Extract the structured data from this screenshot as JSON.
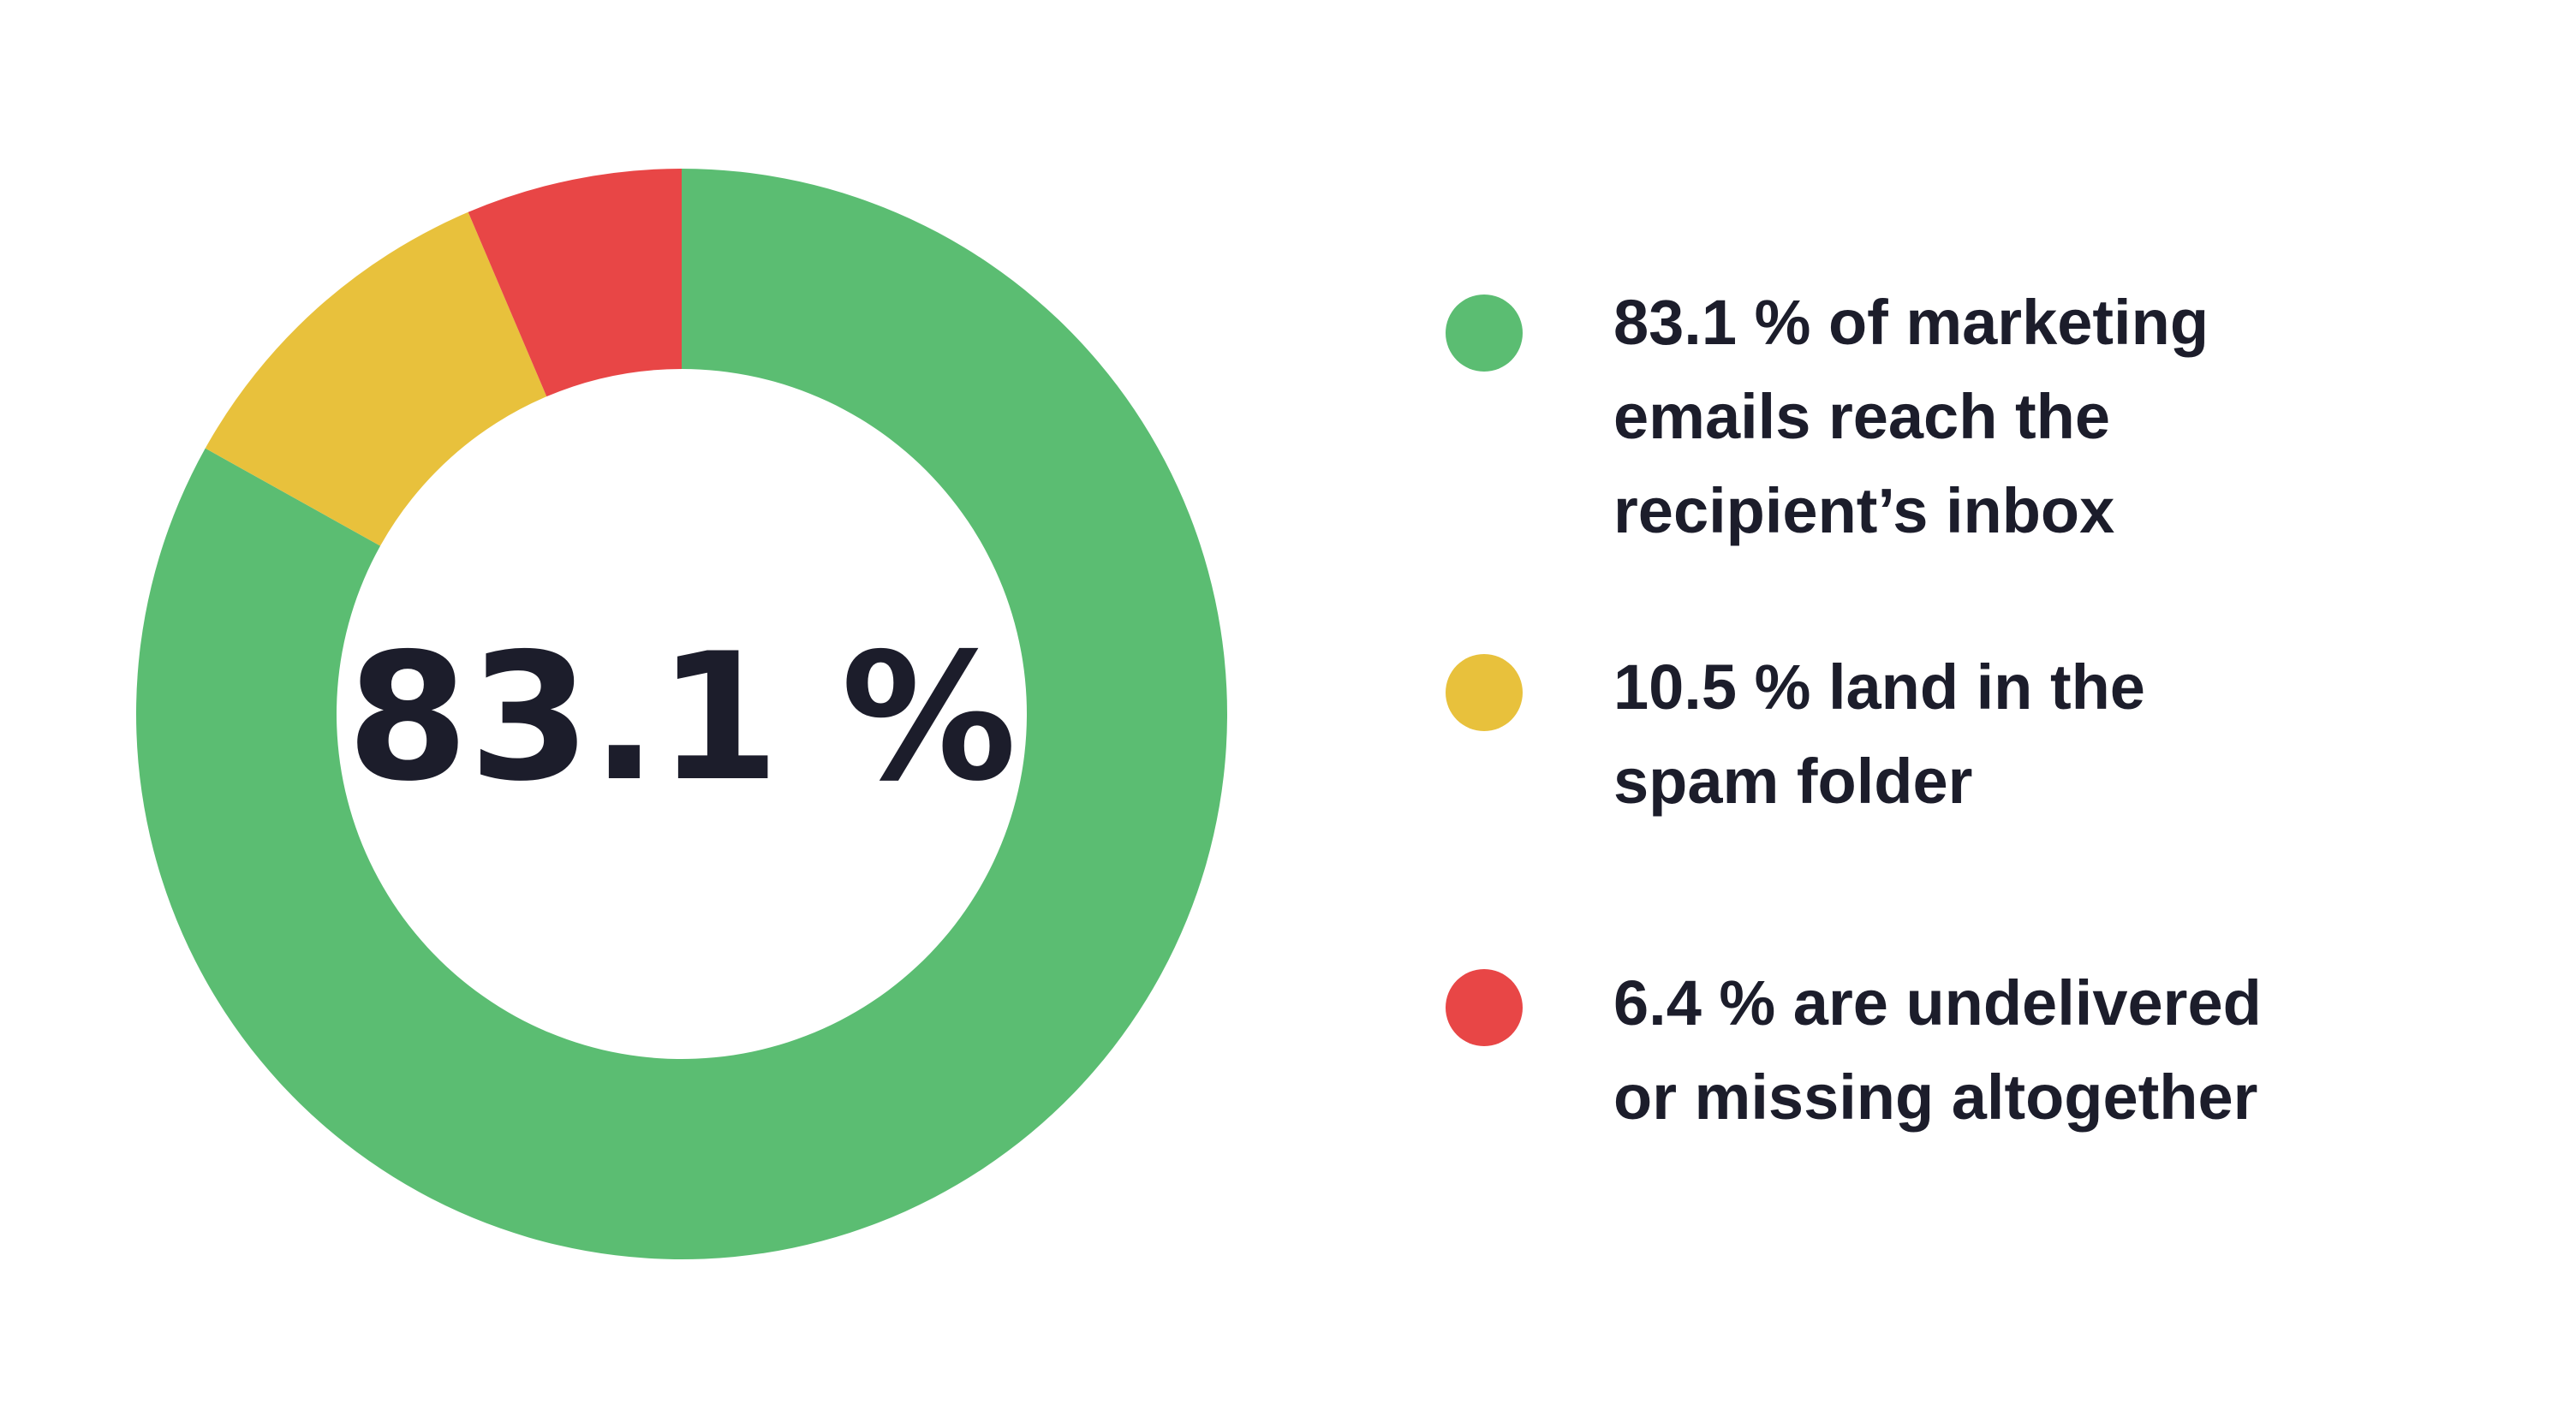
{
  "chart_data": {
    "type": "pie",
    "variant": "donut",
    "center_label": "83.1 %",
    "slices": [
      {
        "label": "83.1 % of marketing\nemails reach the\nrecipient’s inbox",
        "value": 83.1,
        "color": "#5bbd72"
      },
      {
        "label": "10.5 % land in the\nspam folder",
        "value": 10.5,
        "color": "#e8c13c"
      },
      {
        "label": "6.4 % are undelivered\nor missing altogether",
        "value": 6.4,
        "color": "#e84646"
      }
    ],
    "legend_position": "right"
  },
  "colors": {
    "text": "#1c1d2b",
    "background": "#ffffff"
  }
}
